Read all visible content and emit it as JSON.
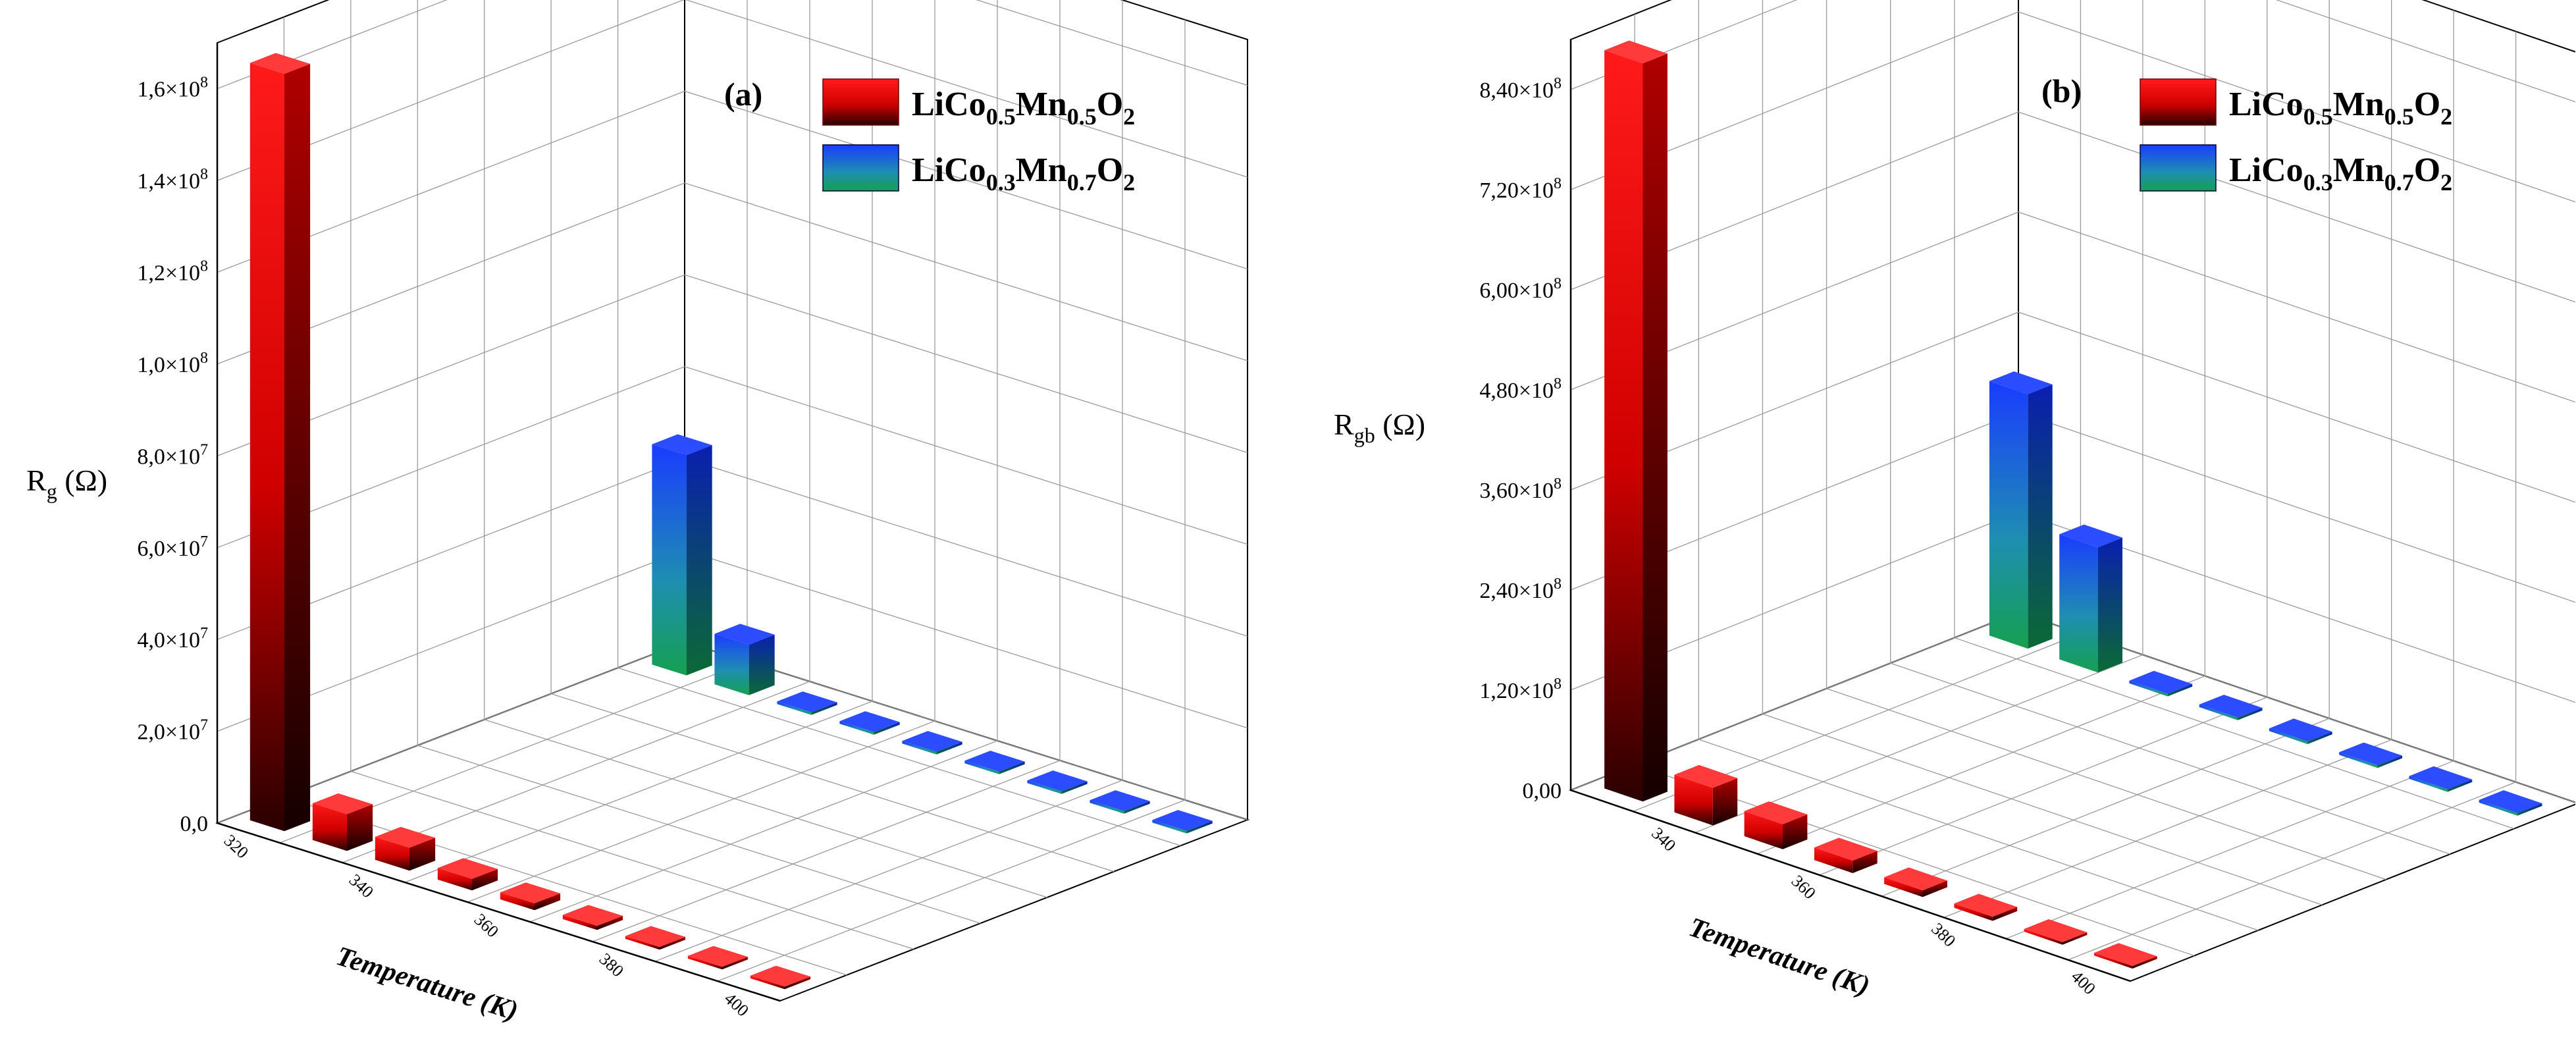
{
  "figure": {
    "legend_items": [
      {
        "pre": "LiCo",
        "sub1": "0.5",
        "mid": "Mn",
        "sub2": "0.5",
        "post": "O",
        "sub3": "2",
        "color": "#ff0000"
      },
      {
        "pre": "LiCo",
        "sub1": "0.3",
        "mid": "Mn",
        "sub2": "0.7",
        "post": "O",
        "sub3": "2",
        "color": "#0000ff"
      }
    ],
    "xlabel": "Temperature (K)"
  },
  "chart_data": [
    {
      "panel_label": "(a)",
      "type": "bar3d",
      "ylabel_main": "R",
      "ylabel_sub": "g",
      "ylabel_unit": "(Ω)",
      "categories": [
        "320",
        "330",
        "340",
        "350",
        "360",
        "370",
        "380",
        "390",
        "400"
      ],
      "category_tick_labels": [
        "320",
        "340",
        "360",
        "380",
        "400"
      ],
      "yticks": [
        {
          "value": 0,
          "label": "0,0"
        },
        {
          "value": 20000000,
          "label": "2,0×10",
          "exp": "7"
        },
        {
          "value": 40000000,
          "label": "4,0×10",
          "exp": "7"
        },
        {
          "value": 60000000,
          "label": "6,0×10",
          "exp": "7"
        },
        {
          "value": 80000000,
          "label": "8,0×10",
          "exp": "7"
        },
        {
          "value": 100000000,
          "label": "1,0×10",
          "exp": "8"
        },
        {
          "value": 120000000,
          "label": "1,2×10",
          "exp": "8"
        },
        {
          "value": 140000000,
          "label": "1,4×10",
          "exp": "8"
        },
        {
          "value": 160000000,
          "label": "1,6×10",
          "exp": "8"
        }
      ],
      "ylim": [
        0,
        170000000
      ],
      "series": [
        {
          "name": "LiCo0.5Mn0.5O2",
          "color": "#ff0000",
          "values": [
            165000000,
            8000000,
            5000000,
            2500000,
            1500000,
            900000,
            600000,
            400000,
            300000
          ]
        },
        {
          "name": "LiCo0.3Mn0.7O2",
          "color": "#0000ff",
          "values": [
            48000000,
            11000000,
            200000,
            150000,
            100000,
            80000,
            60000,
            50000,
            40000
          ]
        }
      ]
    },
    {
      "panel_label": "(b)",
      "type": "bar3d",
      "ylabel_main": "R",
      "ylabel_sub": "gb",
      "ylabel_unit": "(Ω)",
      "categories": [
        "330",
        "340",
        "350",
        "360",
        "370",
        "380",
        "390",
        "400"
      ],
      "category_tick_labels": [
        "340",
        "360",
        "380",
        "400"
      ],
      "yticks": [
        {
          "value": 0,
          "label": "0,00"
        },
        {
          "value": 120000000,
          "label": "1,20×10",
          "exp": "8"
        },
        {
          "value": 240000000,
          "label": "2,40×10",
          "exp": "8"
        },
        {
          "value": 360000000,
          "label": "3,60×10",
          "exp": "8"
        },
        {
          "value": 480000000,
          "label": "4,80×10",
          "exp": "8"
        },
        {
          "value": 600000000,
          "label": "6,00×10",
          "exp": "8"
        },
        {
          "value": 720000000,
          "label": "7,20×10",
          "exp": "8"
        },
        {
          "value": 840000000,
          "label": "8,40×10",
          "exp": "8"
        }
      ],
      "ylim": [
        0,
        900000000
      ],
      "series": [
        {
          "name": "LiCo0.5Mn0.5O2",
          "color": "#ff0000",
          "values": [
            885000000,
            45000000,
            30000000,
            15000000,
            8000000,
            5000000,
            3000000,
            2000000
          ]
        },
        {
          "name": "LiCo0.3Mn0.7O2",
          "color": "#0000ff",
          "values": [
            305000000,
            150000000,
            2000000,
            1500000,
            1000000,
            800000,
            600000,
            500000
          ]
        }
      ]
    }
  ]
}
